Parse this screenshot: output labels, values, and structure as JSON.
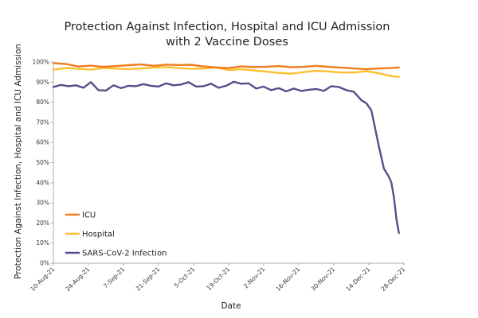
{
  "chart_data": {
    "type": "line",
    "title": [
      "Protection Against Infection, Hospital and ICU Admission",
      "with 2 Vaccine Doses"
    ],
    "xlabel": "Date",
    "ylabel": "Protection Against Infection, Hospital and ICU Admission",
    "xlim": [
      0,
      140
    ],
    "ylim": [
      0,
      100
    ],
    "y_ticks": [
      0,
      10,
      20,
      30,
      40,
      50,
      60,
      70,
      80,
      90,
      100
    ],
    "y_tick_labels": [
      "0%",
      "10%",
      "20%",
      "30%",
      "40%",
      "50%",
      "60%",
      "70%",
      "80%",
      "90%",
      "100%"
    ],
    "x_ticks": [
      0,
      14,
      28,
      42,
      56,
      70,
      84,
      98,
      112,
      126,
      140
    ],
    "x_tick_labels": [
      "10-Aug-21",
      "24-Aug-21",
      "7-Sep-21",
      "21-Sep-21",
      "5-Oct-21",
      "19-Oct-21",
      "2-Nov-21",
      "16-Nov-21",
      "30-Nov-21",
      "14-Dec-21",
      "28-Dec-21"
    ],
    "legend_position": "bottom-left",
    "series": [
      {
        "name": "ICU",
        "color": "#f07c1e",
        "x": [
          0,
          5,
          10,
          15,
          20,
          25,
          30,
          35,
          40,
          45,
          50,
          55,
          60,
          65,
          70,
          75,
          80,
          85,
          90,
          95,
          100,
          105,
          110,
          115,
          120,
          125,
          130,
          135,
          138
        ],
        "values": [
          99.5,
          99.0,
          97.8,
          98.2,
          97.6,
          98.0,
          98.4,
          98.8,
          98.1,
          98.7,
          98.5,
          98.6,
          97.8,
          97.3,
          97.0,
          97.8,
          97.5,
          97.6,
          98.0,
          97.4,
          97.6,
          98.1,
          97.6,
          97.2,
          96.8,
          96.4,
          96.8,
          97.0,
          97.3
        ]
      },
      {
        "name": "Hospital",
        "color": "#fdbf2d",
        "x": [
          0,
          5,
          10,
          15,
          20,
          25,
          30,
          35,
          40,
          45,
          50,
          55,
          60,
          65,
          70,
          75,
          80,
          85,
          90,
          95,
          100,
          105,
          110,
          115,
          120,
          125,
          130,
          135,
          138
        ],
        "values": [
          96.2,
          97.0,
          96.6,
          96.2,
          97.0,
          96.7,
          96.5,
          96.8,
          97.2,
          97.5,
          97.0,
          96.6,
          96.8,
          97.2,
          96.0,
          96.4,
          95.8,
          95.2,
          94.6,
          94.2,
          95.0,
          95.6,
          95.3,
          94.8,
          94.8,
          95.4,
          94.4,
          93.0,
          92.6
        ]
      },
      {
        "name": "SARS-CoV-2 Infection",
        "color": "#5c4b8a",
        "x": [
          0,
          3,
          6,
          9,
          12,
          15,
          18,
          21,
          24,
          27,
          30,
          33,
          36,
          39,
          42,
          45,
          48,
          51,
          54,
          57,
          60,
          63,
          66,
          69,
          72,
          75,
          78,
          81,
          84,
          87,
          90,
          93,
          96,
          99,
          102,
          105,
          108,
          111,
          114,
          117,
          120,
          123,
          125,
          127,
          128,
          130,
          132,
          133,
          134,
          135,
          136,
          137,
          138
        ],
        "values": [
          87.6,
          88.6,
          88.0,
          88.4,
          87.2,
          90.0,
          86.0,
          85.8,
          88.4,
          87.0,
          88.2,
          88.0,
          89.0,
          88.2,
          87.8,
          89.4,
          88.4,
          88.8,
          90.0,
          87.8,
          88.0,
          89.2,
          87.2,
          88.2,
          90.2,
          89.2,
          89.4,
          86.8,
          87.8,
          86.0,
          87.0,
          85.4,
          86.8,
          85.6,
          86.2,
          86.6,
          85.6,
          88.0,
          87.6,
          86.0,
          85.2,
          81.0,
          79.5,
          76.0,
          70.0,
          58.0,
          47.0,
          45.0,
          43.0,
          40.0,
          33.0,
          22.0,
          15.0
        ]
      }
    ]
  }
}
